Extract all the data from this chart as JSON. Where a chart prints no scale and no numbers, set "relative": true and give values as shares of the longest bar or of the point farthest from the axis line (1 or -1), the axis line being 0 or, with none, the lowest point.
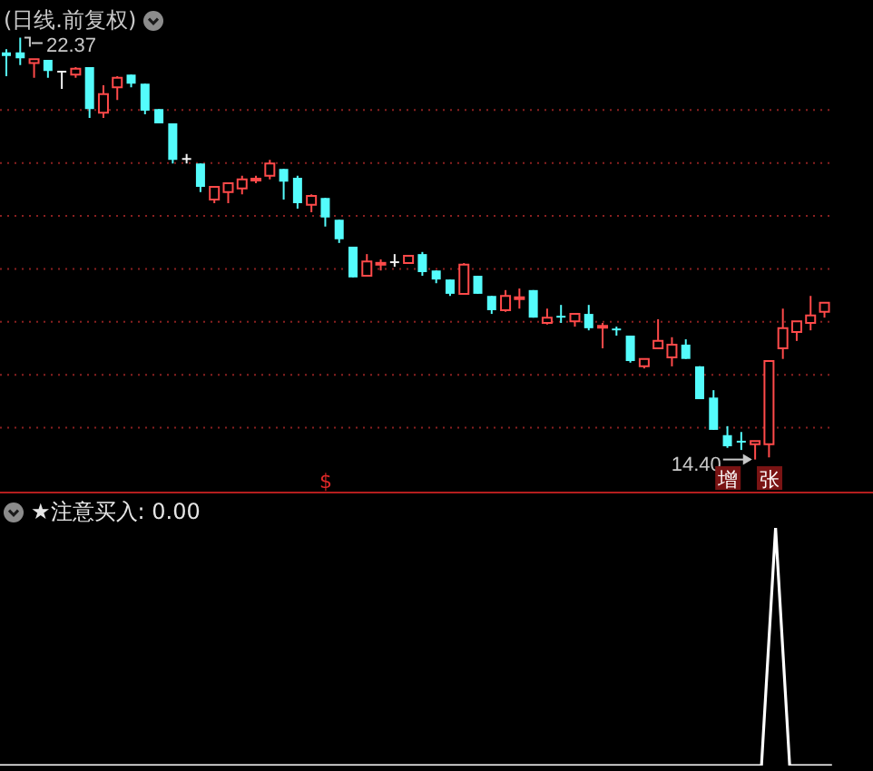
{
  "chart_data": [
    {
      "type": "candlestick",
      "title": "(日线.前复权)",
      "categories": [
        null,
        null,
        null,
        null,
        null,
        null,
        null,
        null,
        null,
        null,
        null,
        null,
        null,
        null,
        null,
        null,
        null,
        null,
        null,
        null,
        null,
        null,
        null,
        null,
        null,
        null,
        null,
        null,
        null,
        null,
        null,
        null,
        null,
        null,
        null,
        null,
        null,
        null,
        null,
        null,
        null,
        null,
        null,
        null,
        null,
        null,
        null,
        null,
        null,
        null,
        null,
        null,
        null,
        null,
        null,
        null,
        null,
        null,
        null,
        null
      ],
      "ohlc": [
        [
          22.09,
          22.15,
          21.64,
          22.02
        ],
        [
          22.09,
          22.37,
          21.85,
          21.98
        ],
        [
          21.89,
          21.96,
          21.61,
          21.96
        ],
        [
          21.95,
          21.95,
          21.61,
          21.74
        ],
        [
          21.71,
          21.74,
          21.4,
          21.71
        ],
        [
          21.67,
          21.81,
          21.61,
          21.78
        ],
        [
          21.81,
          21.81,
          20.85,
          21.02
        ],
        [
          20.95,
          21.47,
          20.85,
          21.3
        ],
        [
          21.43,
          21.64,
          21.19,
          21.61
        ],
        [
          21.67,
          21.67,
          21.43,
          21.5
        ],
        [
          21.5,
          21.5,
          20.92,
          20.99
        ],
        [
          21.02,
          21.02,
          20.75,
          20.75
        ],
        [
          20.75,
          20.75,
          19.99,
          20.06
        ],
        [
          20.06,
          20.17,
          19.99,
          20.06
        ],
        [
          19.99,
          19.99,
          19.45,
          19.55
        ],
        [
          19.31,
          19.55,
          19.24,
          19.55
        ],
        [
          19.45,
          19.62,
          19.24,
          19.62
        ],
        [
          19.52,
          19.76,
          19.41,
          19.69
        ],
        [
          19.67,
          19.76,
          19.62,
          19.69
        ],
        [
          19.76,
          20.06,
          19.69,
          19.99
        ],
        [
          19.89,
          19.89,
          19.31,
          19.65
        ],
        [
          19.72,
          19.76,
          19.14,
          19.24
        ],
        [
          19.21,
          19.41,
          19.07,
          19.38
        ],
        [
          19.34,
          19.34,
          18.8,
          18.97
        ],
        [
          18.93,
          18.93,
          18.49,
          18.56
        ],
        [
          18.42,
          18.42,
          17.84,
          17.84
        ],
        [
          17.87,
          18.28,
          17.87,
          18.14
        ],
        [
          18.08,
          18.18,
          17.97,
          18.11
        ],
        [
          18.11,
          18.28,
          18.04,
          18.11
        ],
        [
          18.11,
          18.25,
          18.11,
          18.25
        ],
        [
          18.28,
          18.32,
          17.87,
          17.94
        ],
        [
          17.97,
          17.97,
          17.73,
          17.8
        ],
        [
          17.8,
          17.8,
          17.49,
          17.53
        ],
        [
          17.53,
          18.11,
          17.53,
          18.08
        ],
        [
          17.87,
          17.87,
          17.53,
          17.53
        ],
        [
          17.49,
          17.49,
          17.15,
          17.22
        ],
        [
          17.22,
          17.6,
          17.19,
          17.49
        ],
        [
          17.43,
          17.63,
          17.25,
          17.46
        ],
        [
          17.6,
          17.6,
          17.08,
          17.08
        ],
        [
          16.98,
          17.25,
          16.95,
          17.08
        ],
        [
          17.1,
          17.32,
          16.98,
          17.08
        ],
        [
          17.01,
          17.15,
          16.91,
          17.15
        ],
        [
          17.15,
          17.32,
          16.84,
          16.88
        ],
        [
          16.89,
          16.98,
          16.5,
          16.91
        ],
        [
          16.86,
          16.91,
          16.74,
          16.84
        ],
        [
          16.74,
          16.74,
          16.23,
          16.26
        ],
        [
          16.16,
          16.3,
          16.12,
          16.3
        ],
        [
          16.5,
          17.05,
          16.5,
          16.64
        ],
        [
          16.33,
          16.71,
          16.16,
          16.57
        ],
        [
          16.57,
          16.67,
          16.3,
          16.3
        ],
        [
          16.16,
          16.16,
          15.54,
          15.54
        ],
        [
          15.57,
          15.71,
          14.96,
          14.96
        ],
        [
          14.86,
          15.03,
          14.62,
          14.65
        ],
        [
          14.73,
          14.92,
          14.58,
          14.72
        ],
        [
          14.69,
          14.75,
          14.4,
          14.75
        ],
        [
          14.69,
          16.26,
          14.44,
          16.26
        ],
        [
          16.5,
          17.25,
          16.3,
          16.88
        ],
        [
          16.81,
          17.01,
          16.64,
          17.01
        ],
        [
          16.98,
          17.49,
          16.84,
          17.12
        ],
        [
          17.19,
          17.36,
          17.08,
          17.36
        ]
      ],
      "grid": "y",
      "yticks": [
        {
          "value": 15,
          "label": null
        },
        {
          "value": 16,
          "label": null
        },
        {
          "value": 17,
          "label": null
        },
        {
          "value": 18,
          "label": null
        },
        {
          "value": 19,
          "label": null
        },
        {
          "value": 20,
          "label": null
        },
        {
          "value": 21,
          "label": null
        }
      ],
      "tick_labels": false,
      "annotations": [
        "22.37",
        "14.40",
        "$",
        "增",
        "张"
      ]
    },
    {
      "type": "line",
      "title": "★注意买入: 0.00",
      "categories": [
        null,
        null,
        null,
        null,
        null,
        null,
        null,
        null,
        null,
        null,
        null,
        null,
        null,
        null,
        null,
        null,
        null,
        null,
        null,
        null,
        null,
        null,
        null,
        null,
        null,
        null,
        null,
        null,
        null,
        null,
        null,
        null,
        null,
        null,
        null,
        null,
        null,
        null,
        null,
        null,
        null,
        null,
        null,
        null,
        null,
        null,
        null,
        null,
        null,
        null,
        null,
        null,
        null,
        null,
        null,
        null,
        null,
        null,
        null,
        null
      ],
      "relative": true,
      "tick_labels": false,
      "series": [
        {
          "color": "#ffffff",
          "values": [
            0,
            0,
            0,
            0,
            0,
            0,
            0,
            0,
            0,
            0,
            0,
            0,
            0,
            0,
            0,
            0,
            0,
            0,
            0,
            0,
            0,
            0,
            0,
            0,
            0,
            0,
            0,
            0,
            0,
            0,
            0,
            0,
            0,
            0,
            0,
            0,
            0,
            0,
            0,
            0,
            0,
            0,
            0,
            0,
            0,
            0,
            0,
            0,
            0,
            0,
            0,
            0,
            0,
            0,
            0,
            1,
            0,
            0,
            0,
            0
          ]
        }
      ]
    }
  ]
}
